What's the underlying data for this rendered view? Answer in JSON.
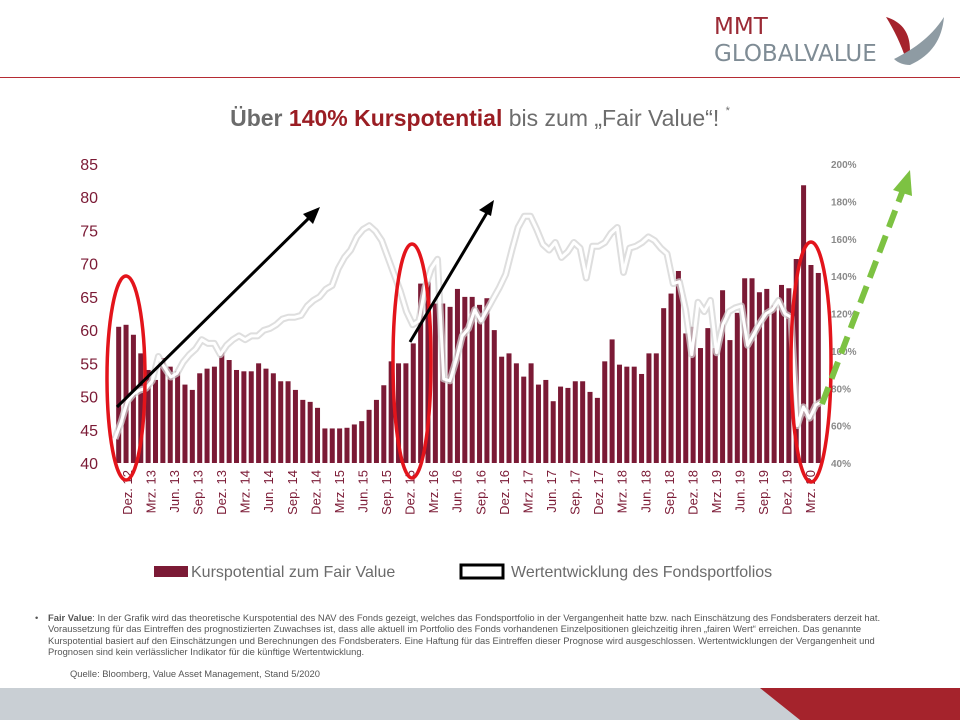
{
  "brand": {
    "line1": "MMT",
    "line2": "GLOBALVALUE"
  },
  "header": {
    "title_pre": "Über ",
    "title_highlight": "140% Kurspotential",
    "title_post": " bis zum „Fair Value“! ",
    "title_star": "*"
  },
  "chart_data": {
    "type": "bar",
    "title": "Über 140% Kurspotential bis zum „Fair Value“!",
    "xlabel": "",
    "ylabel": "",
    "ylim": [
      40,
      85
    ],
    "y2lim": [
      40,
      200
    ],
    "y_ticks": [
      "85",
      "80",
      "75",
      "70",
      "65",
      "60",
      "55",
      "50",
      "45",
      "40"
    ],
    "y2_ticks": [
      "200%",
      "180%",
      "160%",
      "140%",
      "120%",
      "100%",
      "80%",
      "60%",
      "40%"
    ],
    "x_ticks": [
      "Dez. 12",
      "Mrz. 13",
      "Jun. 13",
      "Sep. 13",
      "Dez. 13",
      "Mrz. 14",
      "Jun. 14",
      "Sep. 14",
      "Dez. 14",
      "Mrz. 15",
      "Jun. 15",
      "Sep. 15",
      "Dez. 15",
      "Mrz. 16",
      "Jun. 16",
      "Sep. 16",
      "Dez. 16",
      "Mrz. 17",
      "Jun. 17",
      "Sep. 17",
      "Dez. 17",
      "Mrz. 18",
      "Jun. 18",
      "Sep. 18",
      "Dez. 18",
      "Mrz. 19",
      "Jun. 19",
      "Sep. 19",
      "Dez. 19",
      "Mrz. 20"
    ],
    "legend": [
      "Kurspotential zum Fair Value",
      "Wertentwicklung des Fondsportfolios"
    ],
    "series": [
      {
        "name": "Kurspotential zum Fair Value",
        "axis": "left",
        "values": [
          60.5,
          60.8,
          59.3,
          56.5,
          54.0,
          52.5,
          55.8,
          54.5,
          53.8,
          51.8,
          51.0,
          53.5,
          54.2,
          54.5,
          56.8,
          55.5,
          54.0,
          53.8,
          53.8,
          55.0,
          54.2,
          53.5,
          52.3,
          52.3,
          51.0,
          49.5,
          49.2,
          48.3,
          45.2,
          45.2,
          45.2,
          45.3,
          45.8,
          46.3,
          48.0,
          49.5,
          51.7,
          55.3,
          55.0,
          55.0,
          58.0,
          67.0,
          67.3,
          64.0,
          64.0,
          63.5,
          66.2,
          65.0,
          65.0,
          63.8,
          64.8,
          60.0,
          56.0,
          56.5,
          55.0,
          53.0,
          55.0,
          51.8,
          52.5,
          49.3,
          51.5,
          51.3,
          52.3,
          52.3,
          50.7,
          49.8,
          55.3,
          58.6,
          54.8,
          54.5,
          54.5,
          53.4,
          56.5,
          56.5,
          63.3,
          65.5,
          68.9,
          59.5,
          60.5,
          57.3,
          60.3,
          57.3,
          66.0,
          58.5,
          62.6,
          67.8,
          67.8,
          65.7,
          66.2,
          63.7,
          66.8,
          66.3,
          70.7,
          81.8,
          69.8,
          68.6
        ]
      },
      {
        "name": "Wertentwicklung des Fondsportfolios",
        "axis": "right",
        "values": [
          53,
          62,
          73,
          77,
          79,
          80,
          84,
          97,
          91,
          86,
          88,
          94,
          98,
          101,
          106,
          104,
          104,
          98,
          103,
          106,
          108,
          106,
          108,
          108,
          111,
          112,
          114,
          117,
          118,
          118,
          119,
          124,
          127,
          129,
          133,
          135,
          144,
          150,
          154,
          161,
          165,
          167,
          164,
          159,
          150,
          141,
          132,
          121,
          114,
          116,
          134,
          144,
          149,
          85,
          84,
          95,
          108,
          112,
          122,
          116,
          122,
          128,
          134,
          141,
          154,
          166,
          172,
          172,
          165,
          157,
          154,
          158,
          150,
          153,
          158,
          155,
          139,
          156,
          156,
          158,
          163,
          166,
          142,
          155,
          156,
          158,
          161,
          159,
          155,
          152,
          136,
          137,
          122,
          98,
          126,
          121,
          127,
          99,
          114,
          121,
          123,
          124,
          103,
          109,
          115,
          120,
          122,
          127,
          120,
          118,
          60,
          70,
          64,
          71,
          73
        ]
      }
    ]
  },
  "footnote": {
    "bullet": "•",
    "term": "Fair Value",
    "text": ": In der Grafik wird das theoretische Kurspotential des NAV des Fonds gezeigt, welches das Fondsportfolio in der Vergangenheit hatte bzw. nach Einschätzung des Fondsberaters derzeit hat. Voraussetzung für das Eintreffen des prognostizierten Zuwachses ist, dass alle aktuell im Portfolio des Fonds vorhandenen Einzelpositionen gleichzeitig ihren „fairen Wert“ erreichen. Das genannte Kurspotential basiert auf den Einschätzungen und Berechnungen des Fondsberaters. Eine Haftung für das Eintreffen dieser Prognose wird ausgeschlossen. Wertentwicklungen der Vergangenheit und Prognosen sind kein verlässlicher Indikator für die künftige Wertentwicklung.",
    "source": "Quelle: Bloomberg, Value Asset Management, Stand 5/2020"
  },
  "colors": {
    "bar": "#7b1a35",
    "line": "#ffffff",
    "accent": "#9a1d23",
    "ellipse": "#e3141b",
    "arrow_green": "#7dc242"
  }
}
